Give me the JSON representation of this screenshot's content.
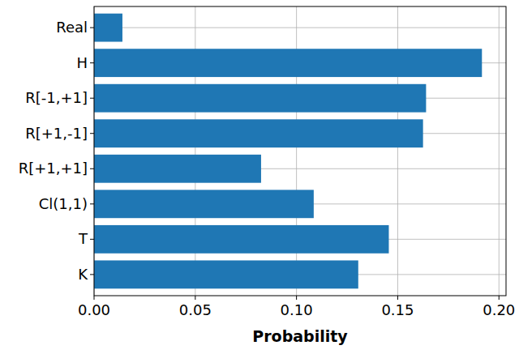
{
  "chart_data": {
    "type": "bar",
    "orientation": "horizontal",
    "categories": [
      "Real",
      "H",
      "R[-1,+1]",
      "R[+1,-1]",
      "R[+1,+1]",
      "Cl(1,1)",
      "T",
      "K"
    ],
    "values": [
      0.014,
      0.1916,
      0.164,
      0.1625,
      0.0825,
      0.1085,
      0.1456,
      0.1305
    ],
    "color": "#1f77b4",
    "x_label": "Probability",
    "xlim": [
      0,
      0.2035
    ],
    "xticks": [
      {
        "value": 0,
        "label": "0.00"
      },
      {
        "value": 0.05,
        "label": "0.05"
      },
      {
        "value": 0.1,
        "label": "0.10"
      },
      {
        "value": 0.15,
        "label": "0.15"
      },
      {
        "value": 0.2,
        "label": "0.20"
      }
    ],
    "grid": true
  }
}
